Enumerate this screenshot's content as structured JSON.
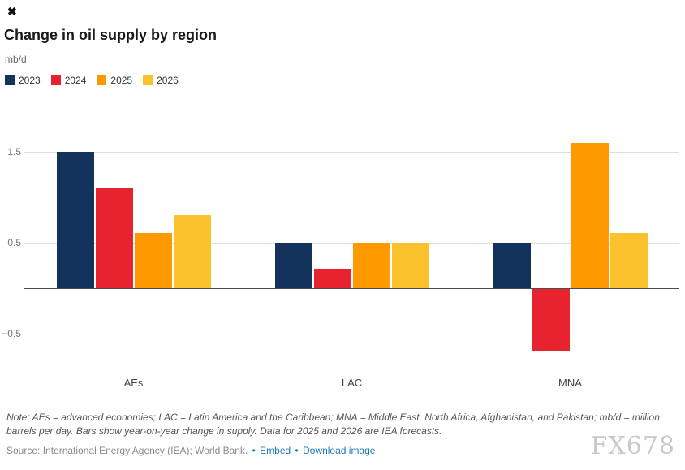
{
  "topbar": {
    "close_glyph": "✖"
  },
  "header": {
    "title": "Change in oil supply by region",
    "unit": "mb/d"
  },
  "chart_data": {
    "type": "bar",
    "categories": [
      "AEs",
      "LAC",
      "MNA"
    ],
    "series": [
      {
        "name": "2023",
        "color": "#14335c",
        "values": [
          1.5,
          0.5,
          0.5
        ]
      },
      {
        "name": "2024",
        "color": "#e6232f",
        "values": [
          1.1,
          0.2,
          -0.7
        ]
      },
      {
        "name": "2025",
        "color": "#fe9900",
        "values": [
          0.6,
          0.5,
          1.6
        ]
      },
      {
        "name": "2026",
        "color": "#fcc22d",
        "values": [
          0.8,
          0.5,
          0.6
        ]
      }
    ],
    "title": "Change in oil supply by region",
    "ylabel": "mb/d",
    "yticks": [
      1.5,
      0.5,
      -0.5
    ],
    "ylim": [
      -0.87,
      1.81
    ],
    "grid": true,
    "legend_position": "top-left"
  },
  "footer": {
    "note": "Note: AEs = advanced economies; LAC = Latin America and the Caribbean; MNA = Middle East, North Africa, Afghanistan, and Pakistan; mb/d = million barrels per day. Bars show year-on-year change in supply. Data for 2025 and 2026 are IEA forecasts.",
    "source": "Source: International Energy Agency (IEA); World Bank.",
    "separator": "•",
    "links": [
      {
        "label": "Embed"
      },
      {
        "label": "Download image"
      }
    ],
    "watermark": "FX678"
  }
}
